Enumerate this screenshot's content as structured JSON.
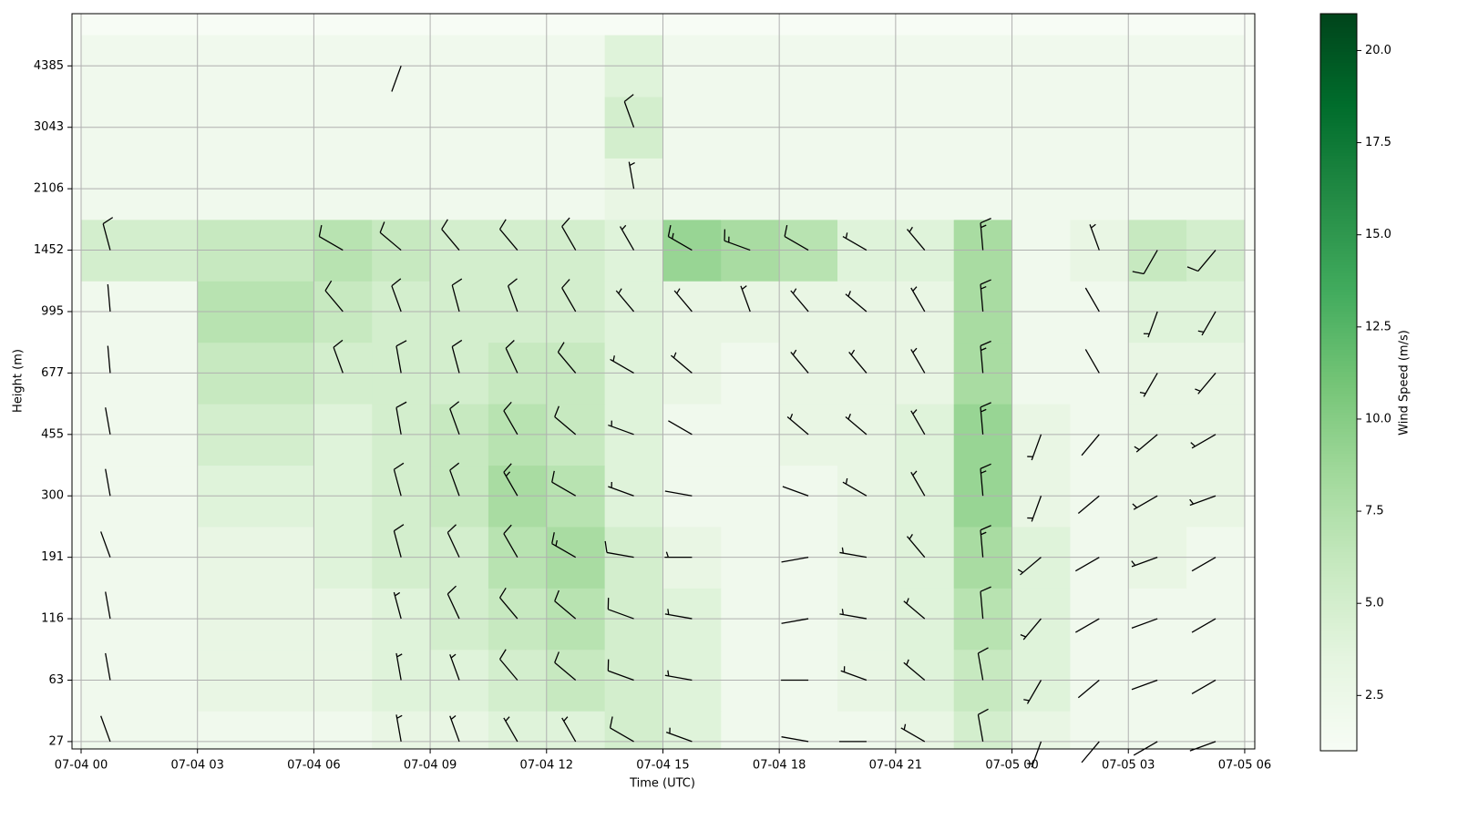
{
  "chart_data": {
    "type": "heatmap_barbs",
    "xlabel": "Time (UTC)",
    "ylabel": "Height (m)",
    "colorbar_label": "Wind Speed (m/s)",
    "xlim": [
      -0.235,
      30.26
    ],
    "ylim": [
      -0.12,
      11.85
    ],
    "xticks": [
      {
        "value": 0,
        "label": "07-04 00"
      },
      {
        "value": 3,
        "label": "07-04 03"
      },
      {
        "value": 6,
        "label": "07-04 06"
      },
      {
        "value": 9,
        "label": "07-04 09"
      },
      {
        "value": 12,
        "label": "07-04 12"
      },
      {
        "value": 15,
        "label": "07-04 15"
      },
      {
        "value": 18,
        "label": "07-04 18"
      },
      {
        "value": 21,
        "label": "07-04 21"
      },
      {
        "value": 24,
        "label": "07-05 00"
      },
      {
        "value": 27,
        "label": "07-05 03"
      },
      {
        "value": 30,
        "label": "07-05 06"
      }
    ],
    "yticks": [
      {
        "value": 0,
        "label": "27"
      },
      {
        "value": 1,
        "label": "63"
      },
      {
        "value": 2,
        "label": "116"
      },
      {
        "value": 3,
        "label": "191"
      },
      {
        "value": 4,
        "label": "300"
      },
      {
        "value": 5,
        "label": "455"
      },
      {
        "value": 6,
        "label": "677"
      },
      {
        "value": 7,
        "label": "995"
      },
      {
        "value": 8,
        "label": "1452"
      },
      {
        "value": 9,
        "label": "2106"
      },
      {
        "value": 10,
        "label": "3043"
      },
      {
        "value": 11,
        "label": "4385"
      }
    ],
    "grid": true,
    "clim": [
      1,
      21
    ],
    "cticks": [
      {
        "value": 2.5,
        "label": "2.5"
      },
      {
        "value": 5,
        "label": "5.0"
      },
      {
        "value": 7.5,
        "label": "7.5"
      },
      {
        "value": 10,
        "label": "10.0"
      },
      {
        "value": 12.5,
        "label": "12.5"
      },
      {
        "value": 15,
        "label": "15.0"
      },
      {
        "value": 17.5,
        "label": "17.5"
      },
      {
        "value": 20,
        "label": "20.0"
      }
    ],
    "colors": [
      "#f7fcf5",
      "#e5f5e0",
      "#c7e9c0",
      "#a1d99b",
      "#74c476",
      "#41ab5d",
      "#238b45",
      "#006d2c",
      "#00441b"
    ],
    "x_edges": [
      0,
      1.5,
      3,
      4.5,
      6,
      7.5,
      9,
      10.5,
      12,
      13.5,
      15,
      16.5,
      18,
      19.5,
      21,
      22.5,
      24,
      25.5,
      27,
      28.5,
      30
    ],
    "y_edges": [
      -0.5,
      0.5,
      1.5,
      2.5,
      3.5,
      4.5,
      5.5,
      6.5,
      7.5,
      8.5,
      9.5,
      10.5,
      11.5
    ],
    "speed": [
      [
        2,
        2,
        2,
        2,
        2,
        3,
        3,
        4,
        4,
        5,
        4,
        2,
        2,
        2,
        3,
        5,
        3,
        2,
        2,
        2
      ],
      [
        2,
        2,
        3,
        3,
        3,
        4,
        4,
        5,
        6,
        5,
        4,
        2,
        2,
        3,
        4,
        6,
        4,
        2,
        2,
        2
      ],
      [
        2,
        2,
        3,
        3,
        3,
        4,
        5,
        6,
        7,
        5,
        4,
        2,
        2,
        3,
        4,
        7,
        4,
        2,
        2,
        2
      ],
      [
        2,
        2,
        3,
        3,
        4,
        5,
        5,
        7,
        8,
        5,
        3,
        2,
        2,
        3,
        4,
        8,
        4,
        2,
        3,
        2
      ],
      [
        2,
        2,
        4,
        4,
        4,
        5,
        6,
        8,
        7,
        4,
        2,
        2,
        2,
        3,
        4,
        9,
        3,
        2,
        3,
        3
      ],
      [
        2,
        2,
        5,
        5,
        4,
        5,
        6,
        7,
        6,
        4,
        2,
        2,
        3,
        3,
        4,
        9,
        3,
        2,
        3,
        3
      ],
      [
        2,
        2,
        6,
        6,
        5,
        5,
        5,
        6,
        6,
        4,
        3,
        2,
        3,
        3,
        3,
        8,
        2,
        2,
        3,
        3
      ],
      [
        2,
        2,
        7,
        7,
        6,
        5,
        5,
        5,
        5,
        4,
        3,
        3,
        3,
        3,
        3,
        8,
        2,
        2,
        4,
        4
      ],
      [
        5,
        5,
        6,
        6,
        7,
        6,
        5,
        5,
        5,
        4,
        9,
        8,
        7,
        4,
        4,
        8,
        2,
        3,
        6,
        5
      ],
      [
        2,
        2,
        2,
        2,
        2,
        2,
        2,
        2,
        2,
        3,
        2,
        2,
        2,
        2,
        2,
        2,
        2,
        2,
        2,
        2
      ],
      [
        2,
        2,
        2,
        2,
        2,
        2,
        2,
        2,
        2,
        5,
        2,
        2,
        2,
        2,
        2,
        2,
        2,
        2,
        2,
        2
      ],
      [
        2,
        2,
        2,
        2,
        2,
        2,
        2,
        2,
        2,
        4,
        2,
        2,
        2,
        2,
        2,
        2,
        2,
        2,
        2,
        2
      ]
    ],
    "direction": [
      [
        340,
        null,
        null,
        null,
        null,
        350,
        340,
        330,
        330,
        300,
        290,
        null,
        280,
        270,
        300,
        350,
        200,
        220,
        240,
        250
      ],
      [
        350,
        null,
        null,
        null,
        null,
        350,
        340,
        320,
        310,
        290,
        280,
        null,
        270,
        290,
        310,
        350,
        210,
        230,
        250,
        240
      ],
      [
        350,
        null,
        null,
        null,
        null,
        345,
        335,
        320,
        310,
        290,
        280,
        null,
        260,
        280,
        310,
        355,
        220,
        240,
        250,
        240
      ],
      [
        340,
        null,
        null,
        null,
        null,
        345,
        335,
        330,
        300,
        280,
        270,
        null,
        260,
        280,
        320,
        355,
        230,
        240,
        250,
        240
      ],
      [
        350,
        null,
        null,
        null,
        null,
        345,
        340,
        330,
        300,
        290,
        280,
        null,
        290,
        300,
        330,
        355,
        200,
        230,
        240,
        250
      ],
      [
        350,
        null,
        null,
        null,
        null,
        350,
        340,
        330,
        310,
        290,
        300,
        null,
        310,
        310,
        330,
        355,
        200,
        220,
        230,
        240
      ],
      [
        355,
        null,
        null,
        null,
        340,
        350,
        345,
        335,
        320,
        300,
        310,
        null,
        320,
        320,
        330,
        355,
        null,
        330,
        210,
        220
      ],
      [
        355,
        null,
        null,
        null,
        320,
        340,
        345,
        340,
        330,
        320,
        320,
        340,
        320,
        310,
        330,
        355,
        null,
        330,
        200,
        210
      ],
      [
        345,
        null,
        null,
        null,
        300,
        310,
        320,
        320,
        330,
        330,
        300,
        290,
        300,
        300,
        320,
        355,
        null,
        340,
        210,
        220
      ],
      [
        null,
        null,
        null,
        null,
        null,
        null,
        null,
        null,
        null,
        350,
        null,
        null,
        null,
        null,
        null,
        null,
        null,
        null,
        null,
        null
      ],
      [
        null,
        null,
        null,
        null,
        null,
        null,
        null,
        null,
        null,
        340,
        null,
        null,
        null,
        null,
        null,
        null,
        null,
        null,
        null,
        null
      ],
      [
        null,
        null,
        null,
        null,
        null,
        200,
        null,
        null,
        null,
        null,
        null,
        null,
        null,
        null,
        null,
        null,
        null,
        null,
        null,
        null
      ]
    ]
  }
}
